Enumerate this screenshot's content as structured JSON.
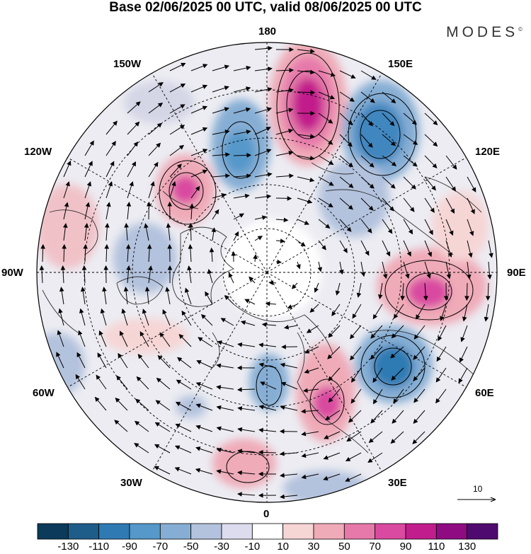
{
  "header": {
    "title": "Base 02/06/2025 00 UTC, valid 08/06/2025 00 UTC",
    "brand": "MODES",
    "brand_mark": "©"
  },
  "map": {
    "projection": "north-polar-stereographic",
    "longitude_labels": {
      "top": "180",
      "top_right": "150E",
      "upper_right": "120E",
      "right": "90E",
      "lower_right": "60E",
      "bottom_right": "30E",
      "bottom": "0",
      "bottom_left": "30W",
      "lower_left": "60W",
      "left": "90W",
      "upper_left": "120W",
      "top_left": "150W"
    },
    "vector_reference": {
      "label": "10"
    }
  },
  "legend": {
    "colors": [
      "#0b3a5a",
      "#1e5c8a",
      "#2f7ab3",
      "#5598c9",
      "#86aed4",
      "#b3c2dd",
      "#dcdcee",
      "#ffffff",
      "#f6d5d5",
      "#efabb8",
      "#e679aa",
      "#d94aa0",
      "#c21d8c",
      "#8e0b82",
      "#4f0a6f"
    ],
    "tick_labels": [
      "-130",
      "-110",
      "-90",
      "-70",
      "-50",
      "-30",
      "-10",
      "10",
      "30",
      "50",
      "70",
      "90",
      "110",
      "130"
    ]
  }
}
